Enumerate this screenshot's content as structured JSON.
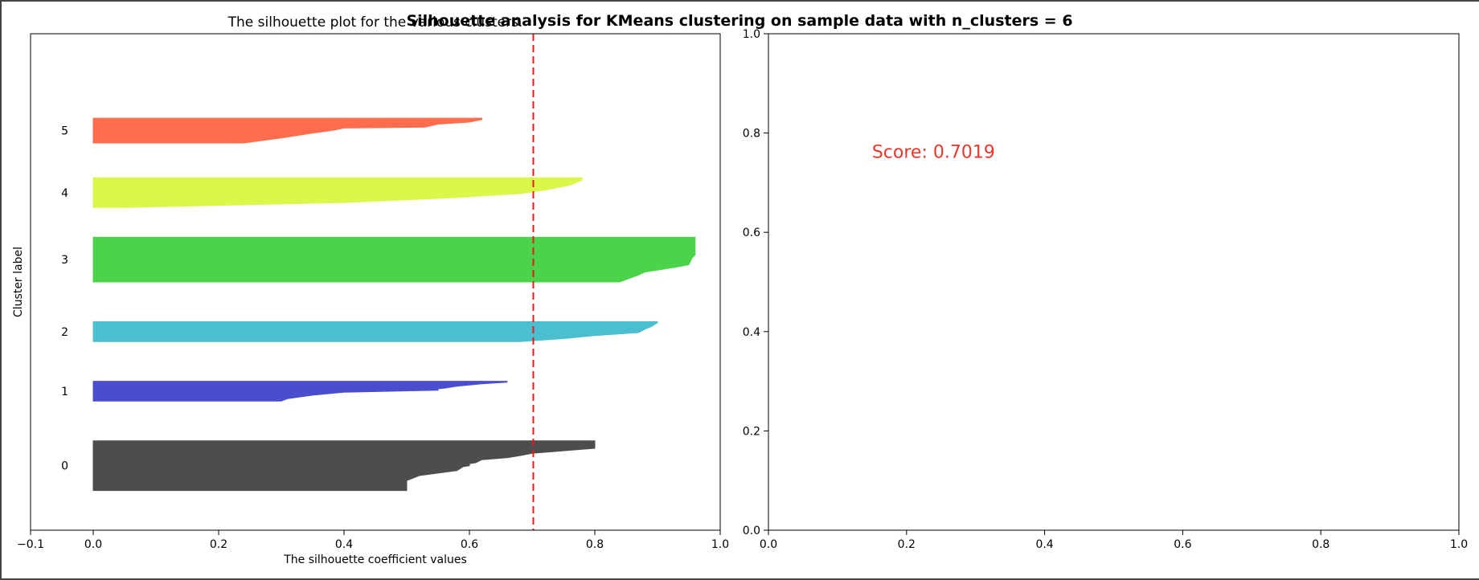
{
  "figure": {
    "suptitle": "Silhouette analysis for KMeans clustering on sample data with n_clusters = 6"
  },
  "chart_data": [
    {
      "type": "area",
      "title": "The silhouette plot for the various clusters.",
      "xlabel": "The silhouette coefficient values",
      "ylabel": "Cluster label",
      "xlim": [
        -0.1,
        1.0
      ],
      "ylim": [
        0,
        10
      ],
      "xticks": [
        -0.1,
        0.0,
        0.2,
        0.4,
        0.6,
        0.8,
        1.0
      ],
      "xtick_labels": [
        "−0.1",
        "0.0",
        "0.2",
        "0.4",
        "0.6",
        "0.8",
        "1.0"
      ],
      "yticks_shown": false,
      "grid": false,
      "average_silhouette_line": {
        "x": 0.7019,
        "color": "#e41a1c",
        "style": "dashed"
      },
      "clusters": [
        {
          "label": "0",
          "color": "#4d4d4d",
          "y_range": [
            0.8,
            1.8
          ],
          "profile": [
            [
              1.8,
              0.8
            ],
            [
              1.75,
              0.8
            ],
            [
              1.7,
              0.8
            ],
            [
              1.65,
              0.8
            ],
            [
              1.63,
              0.78
            ],
            [
              1.55,
              0.7
            ],
            [
              1.5,
              0.68
            ],
            [
              1.46,
              0.66
            ],
            [
              1.42,
              0.62
            ],
            [
              1.36,
              0.61
            ],
            [
              1.34,
              0.6
            ],
            [
              1.3,
              0.6
            ],
            [
              1.28,
              0.59
            ],
            [
              1.2,
              0.58
            ],
            [
              1.15,
              0.55
            ],
            [
              1.1,
              0.52
            ],
            [
              1.0,
              0.5
            ],
            [
              0.8,
              0.5
            ]
          ]
        },
        {
          "label": "1",
          "color": "#4b4dcf",
          "y_range": [
            2.6,
            3.0
          ],
          "profile": [
            [
              3.0,
              0.66
            ],
            [
              2.98,
              0.66
            ],
            [
              2.95,
              0.62
            ],
            [
              2.9,
              0.58
            ],
            [
              2.86,
              0.56
            ],
            [
              2.85,
              0.55
            ],
            [
              2.82,
              0.55
            ],
            [
              2.78,
              0.4
            ],
            [
              2.72,
              0.35
            ],
            [
              2.65,
              0.31
            ],
            [
              2.6,
              0.3
            ]
          ]
        },
        {
          "label": "2",
          "color": "#4bbecf",
          "y_range": [
            3.8,
            4.2
          ],
          "profile": [
            [
              4.2,
              0.9
            ],
            [
              4.18,
              0.9
            ],
            [
              4.1,
              0.89
            ],
            [
              4.05,
              0.88
            ],
            [
              3.98,
              0.87
            ],
            [
              3.92,
              0.8
            ],
            [
              3.86,
              0.75
            ],
            [
              3.8,
              0.68
            ]
          ]
        },
        {
          "label": "3",
          "color": "#4bd44b",
          "y_range": [
            5.0,
            5.9
          ],
          "profile": [
            [
              5.9,
              0.96
            ],
            [
              5.75,
              0.96
            ],
            [
              5.55,
              0.96
            ],
            [
              5.48,
              0.955
            ],
            [
              5.35,
              0.95
            ],
            [
              5.3,
              0.93
            ],
            [
              5.2,
              0.88
            ],
            [
              5.14,
              0.87
            ],
            [
              5.05,
              0.85
            ],
            [
              5.0,
              0.84
            ]
          ]
        },
        {
          "label": "4",
          "color": "#d9f84a",
          "y_range": [
            6.5,
            7.1
          ],
          "profile": [
            [
              7.1,
              0.78
            ],
            [
              7.05,
              0.78
            ],
            [
              7.0,
              0.77
            ],
            [
              6.95,
              0.76
            ],
            [
              6.85,
              0.72
            ],
            [
              6.78,
              0.68
            ],
            [
              6.7,
              0.58
            ],
            [
              6.6,
              0.4
            ],
            [
              6.5,
              0.05
            ]
          ]
        },
        {
          "label": "5",
          "color": "#ff6c4e",
          "y_range": [
            7.8,
            8.3
          ],
          "profile": [
            [
              8.3,
              0.62
            ],
            [
              8.27,
              0.62
            ],
            [
              8.22,
              0.6
            ],
            [
              8.18,
              0.55
            ],
            [
              8.15,
              0.54
            ],
            [
              8.12,
              0.53
            ],
            [
              8.1,
              0.4
            ],
            [
              8.05,
              0.38
            ],
            [
              8.0,
              0.35
            ],
            [
              7.9,
              0.3
            ],
            [
              7.8,
              0.24
            ]
          ]
        }
      ]
    },
    {
      "type": "scatter",
      "title": "",
      "xlabel": "",
      "ylabel": "",
      "xlim": [
        0.0,
        1.0
      ],
      "ylim": [
        0.0,
        1.0
      ],
      "xticks": [
        0.0,
        0.2,
        0.4,
        0.6,
        0.8,
        1.0
      ],
      "xtick_labels": [
        "0.0",
        "0.2",
        "0.4",
        "0.6",
        "0.8",
        "1.0"
      ],
      "yticks": [
        0.0,
        0.2,
        0.4,
        0.6,
        0.8,
        1.0
      ],
      "ytick_labels": [
        "0.0",
        "0.2",
        "0.4",
        "0.6",
        "0.8",
        "1.0"
      ],
      "grid": false,
      "annotation": {
        "text": "Score: 0.7019",
        "x": 0.15,
        "y": 0.75,
        "color": "#e8362c"
      }
    }
  ]
}
